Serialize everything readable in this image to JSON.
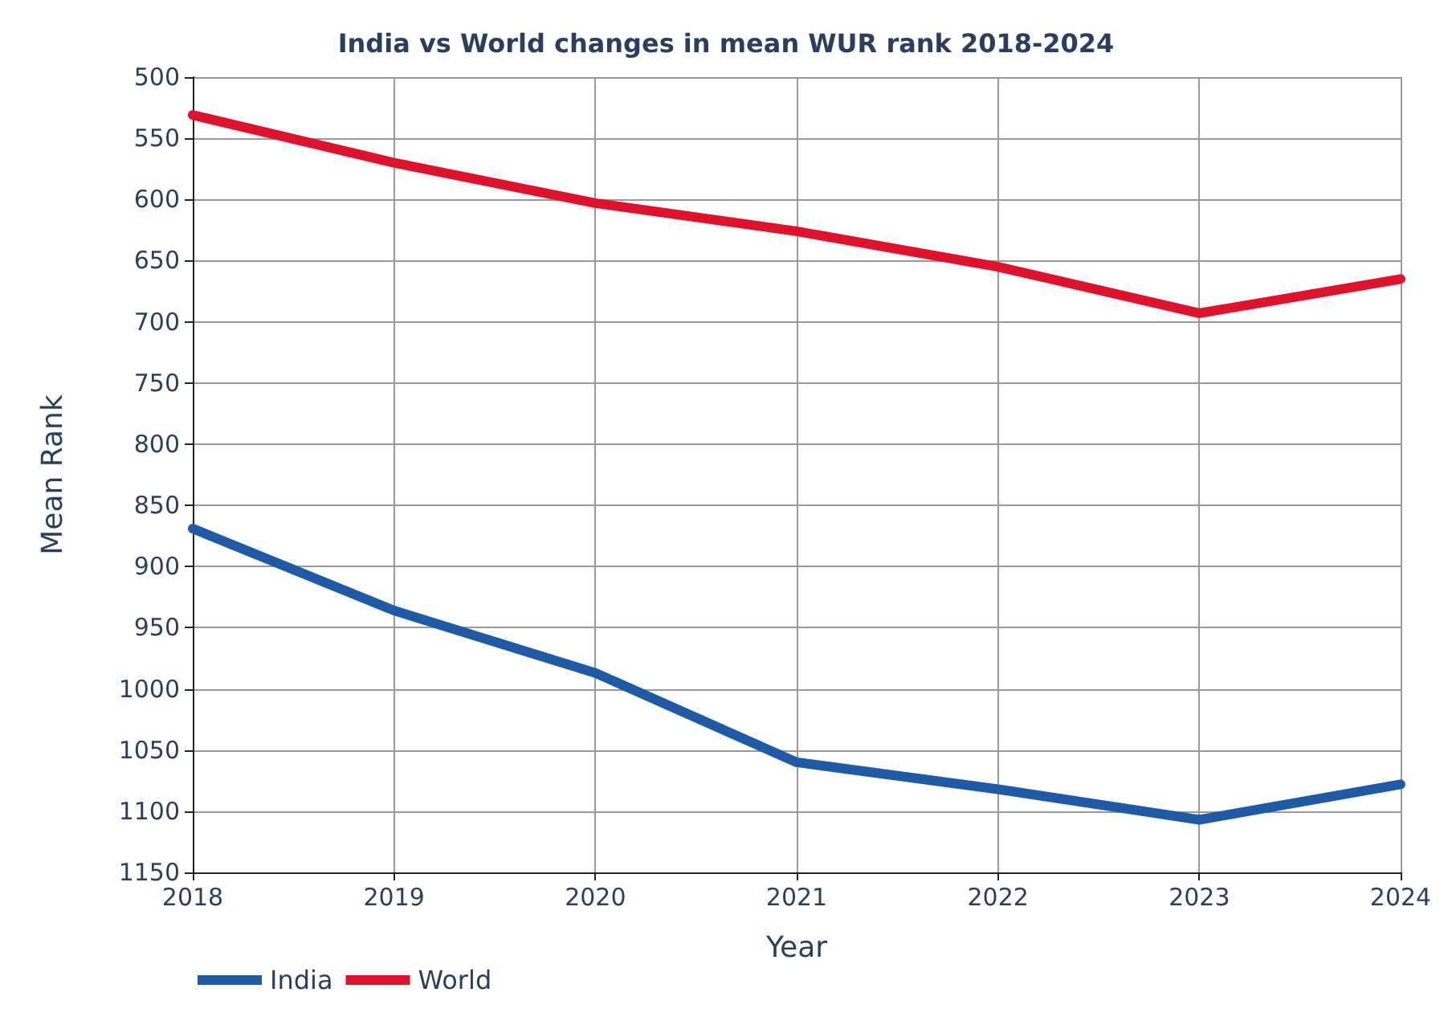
{
  "chart_data": {
    "type": "line",
    "title": "India vs World changes in mean WUR rank 2018-2024",
    "xlabel": "Year",
    "ylabel": "Mean Rank",
    "x": [
      2018,
      2019,
      2020,
      2021,
      2022,
      2023,
      2024
    ],
    "series": [
      {
        "name": "India",
        "color": "#1f5aa6",
        "values": [
          869,
          936,
          987,
          1060,
          1082,
          1107,
          1078
        ]
      },
      {
        "name": "World",
        "color": "#e0112b",
        "values": [
          531,
          570,
          603,
          626,
          655,
          693,
          665
        ]
      }
    ],
    "xlim": [
      2018,
      2024
    ],
    "xticks": [
      2018,
      2019,
      2020,
      2021,
      2022,
      2023,
      2024
    ],
    "ylim": [
      1150,
      500
    ],
    "yticks": [
      500,
      550,
      600,
      650,
      700,
      750,
      800,
      850,
      900,
      950,
      1000,
      1050,
      1100,
      1150
    ],
    "grid": true,
    "legend": "bottom left",
    "marker": "none",
    "line_style": "solid"
  }
}
